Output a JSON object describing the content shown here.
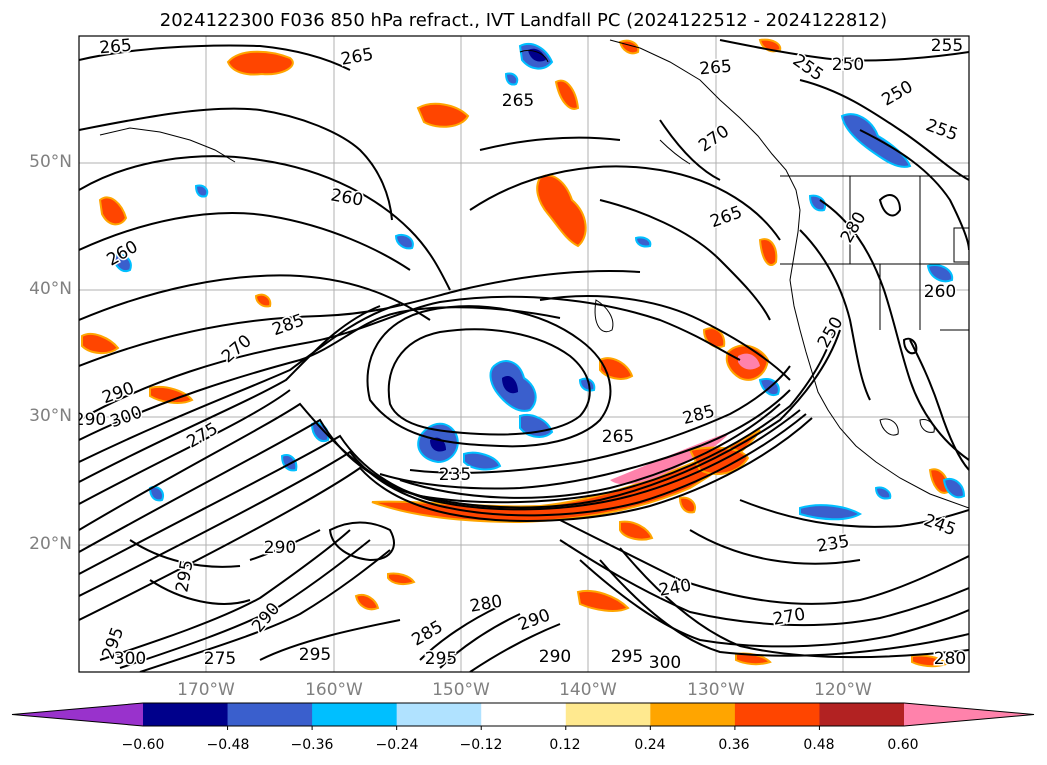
{
  "title": "2024122300 F036 850 hPa refract., IVT Landfall PC (2024122512 - 2024122812)",
  "lat_labels": [
    "50°N",
    "40°N",
    "30°N",
    "20°N"
  ],
  "lon_labels": [
    "170°W",
    "160°W",
    "150°W",
    "140°W",
    "130°W",
    "120°W"
  ],
  "colorbar": {
    "ticks": [
      "−0.60",
      "−0.48",
      "−0.36",
      "−0.24",
      "−0.12",
      "0.12",
      "0.24",
      "0.36",
      "0.48",
      "0.60"
    ],
    "colors": [
      "#9932cc",
      "#00008b",
      "#3a5fcd",
      "#00bfff",
      "#b0e2ff",
      "#ffffff",
      "#ffe98f",
      "#ffa500",
      "#ff4500",
      "#b22222",
      "#ff82ab"
    ]
  },
  "contour_labels": [
    "265",
    "265",
    "265",
    "265",
    "260",
    "250",
    "250",
    "255",
    "255",
    "270",
    "260",
    "265",
    "260",
    "285",
    "290",
    "300",
    "290",
    "275",
    "270",
    "235",
    "265",
    "285",
    "295",
    "290",
    "270",
    "235",
    "245",
    "240",
    "290",
    "290",
    "280",
    "295",
    "295",
    "290",
    "295",
    "300",
    "255",
    "280",
    "275",
    "285",
    "295",
    "300",
    "250",
    "280"
  ]
}
